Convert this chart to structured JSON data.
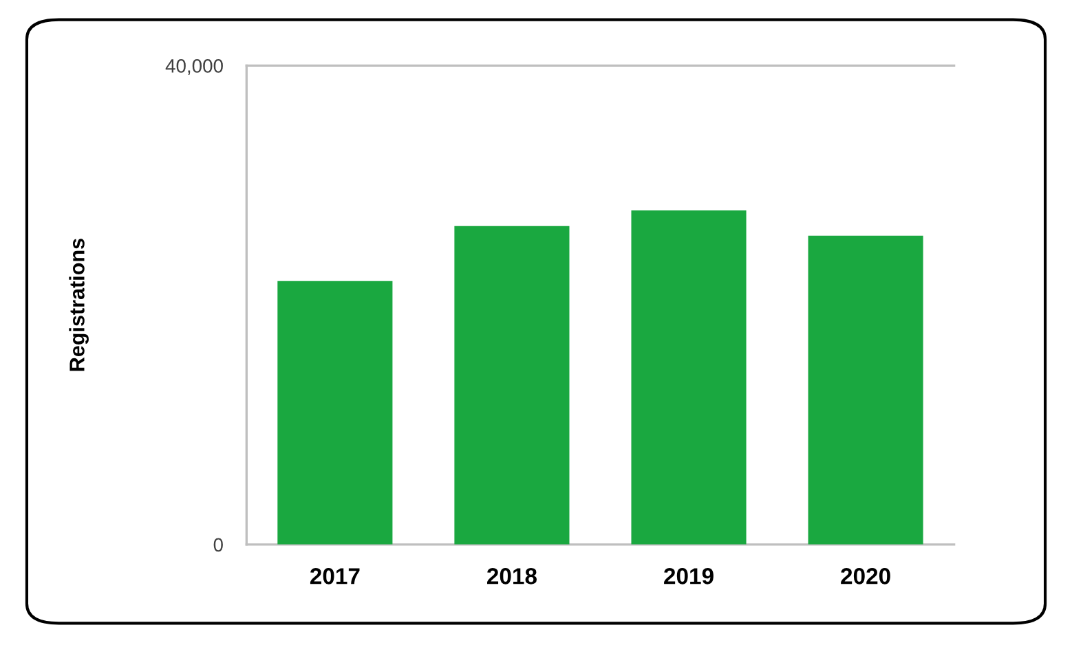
{
  "chart_data": {
    "type": "bar",
    "ylabel": "Registrations",
    "categories": [
      "2017",
      "2018",
      "2019",
      "2020"
    ],
    "values": [
      22000,
      26600,
      27900,
      25800
    ],
    "color": "#1aa840",
    "ylim": [
      0,
      40000
    ],
    "yticks": [
      {
        "value": 0,
        "label": "0"
      },
      {
        "value": 40000,
        "label": "40,000"
      }
    ]
  }
}
